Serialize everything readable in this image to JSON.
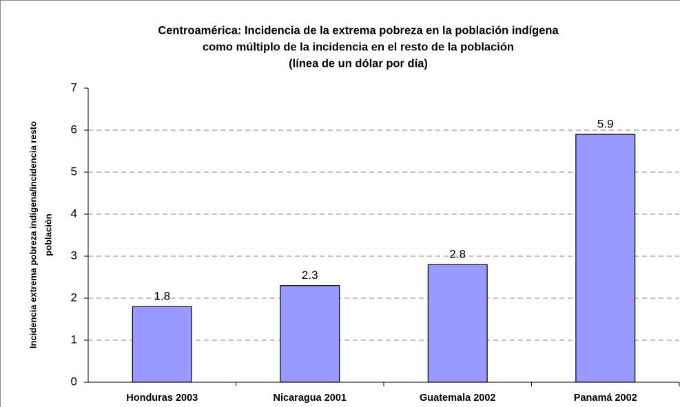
{
  "chart_data": {
    "type": "bar",
    "title": [
      "Centroamérica: Incidencia de la extrema pobreza en la población indígena",
      "como múltiplo de la incidencia en el resto de la población",
      "(línea de un dólar por día)"
    ],
    "y_label": [
      "Incidencia extrema pobreza indígena/incidencia resto",
      "población"
    ],
    "categories": [
      "Honduras 2003",
      "Nicaragua 2001",
      "Guatemala 2002",
      "Panamá 2002"
    ],
    "values": [
      1.8,
      2.3,
      2.8,
      5.9
    ],
    "color": "#9999ff",
    "ylim": [
      0,
      7
    ],
    "yticks": [
      0,
      1,
      2,
      3,
      4,
      5,
      6,
      7
    ],
    "grid": true
  }
}
